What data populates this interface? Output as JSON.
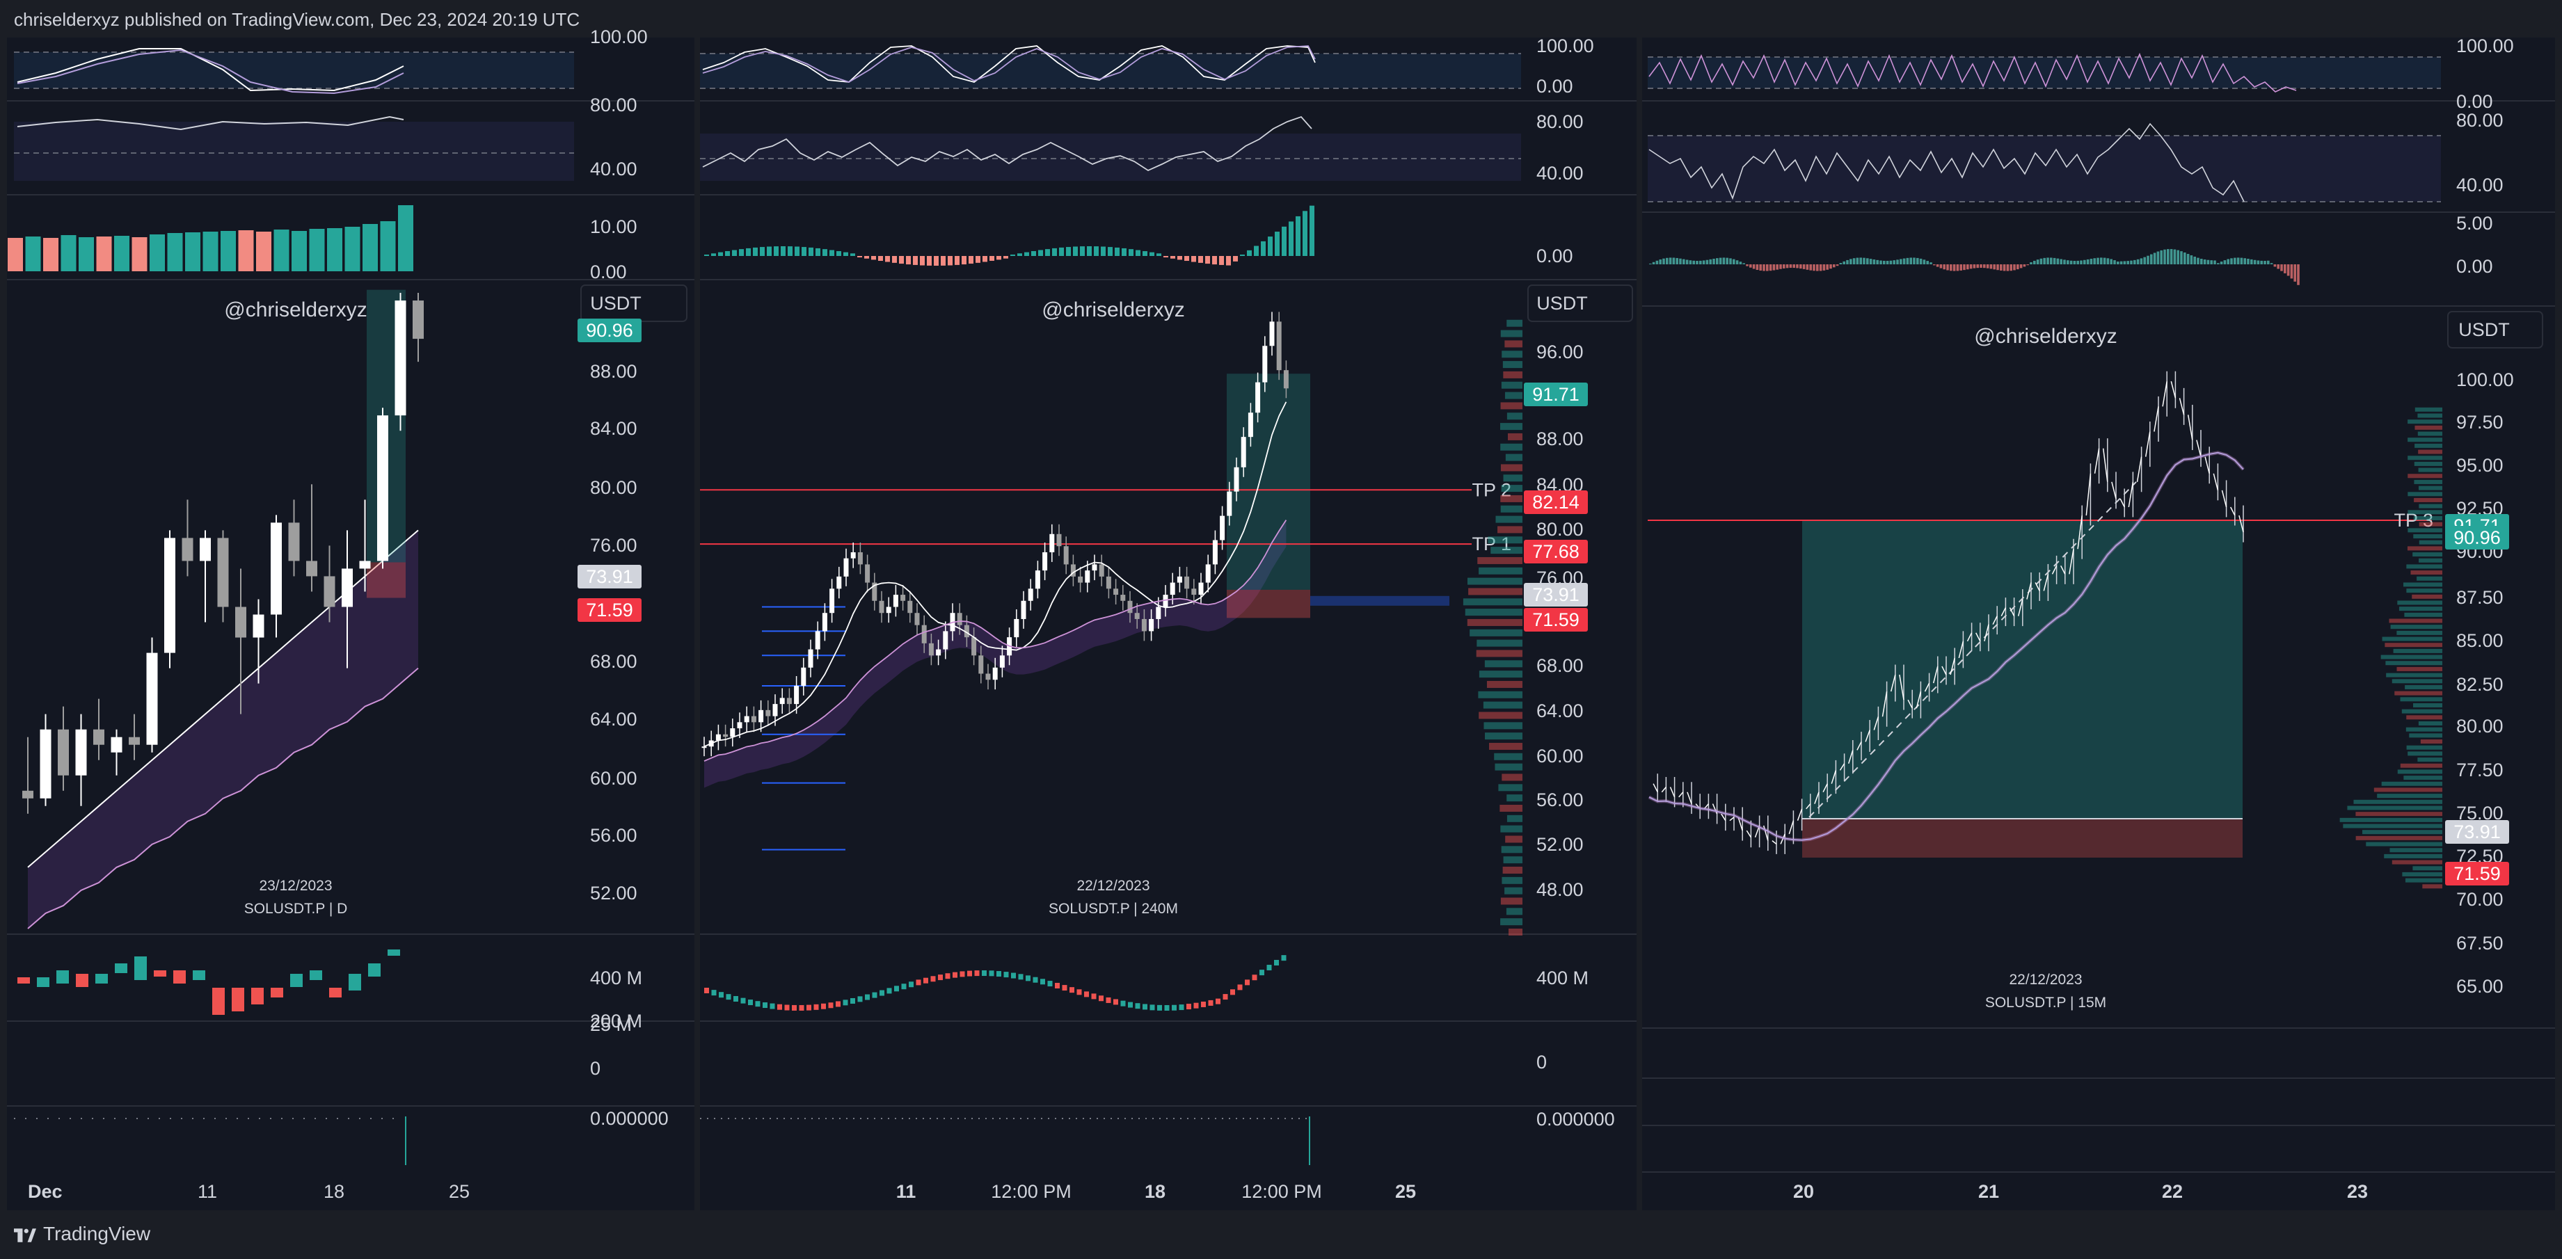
{
  "header": {
    "text": "chriselderxyz published on TradingView.com, Dec 23, 2024 20:19 UTC"
  },
  "footer": {
    "logo_text": "TradingView"
  },
  "colors": {
    "bg": "#131722",
    "up": "#26a69a",
    "down": "#ef5350",
    "candle_white": "#ffffff",
    "tp_line": "#f23645",
    "rsi": "#b39ddb"
  },
  "panels": [
    {
      "watermark": "@chriselderxyz",
      "currency": "USDT",
      "date_label": "23/12/2023",
      "symbol_label": "SOLUSDT.P | D",
      "price_ticks": [
        "88.00",
        "84.00",
        "80.00",
        "76.00",
        "68.00",
        "64.00",
        "60.00",
        "56.00",
        "52.00"
      ],
      "price_tags": [
        {
          "text": "90.96",
          "color": "#26a69a"
        },
        {
          "text": "73.91",
          "color": "#d1d4dc"
        },
        {
          "text": "71.59",
          "color": "#f23645"
        }
      ],
      "osc1_ticks": [
        "100.00"
      ],
      "osc2_ticks": [
        "80.00",
        "40.00"
      ],
      "macd_ticks": [
        "10.00",
        "0.00"
      ],
      "volume_ticks": [
        "400 M",
        "200 M"
      ],
      "vol2_ticks": [
        "25 M",
        "0"
      ],
      "misc_ticks": [
        "0.000000"
      ],
      "x_ticks": [
        {
          "text": "Dec",
          "bold": true
        },
        {
          "text": "11",
          "bold": false
        },
        {
          "text": "18",
          "bold": false
        },
        {
          "text": "25",
          "bold": false
        }
      ]
    },
    {
      "watermark": "@chriselderxyz",
      "currency": "USDT",
      "date_label": "22/12/2023",
      "symbol_label": "SOLUSDT.P | 240M",
      "price_ticks": [
        "96.00",
        "88.00",
        "84.00",
        "80.00",
        "76.00",
        "68.00",
        "64.00",
        "60.00",
        "56.00",
        "52.00",
        "48.00"
      ],
      "price_tags": [
        {
          "text": "91.71",
          "color": "#26a69a"
        },
        {
          "text": "82.14",
          "color": "#f23645"
        },
        {
          "text": "77.68",
          "color": "#f23645"
        },
        {
          "text": "73.91",
          "color": "#d1d4dc"
        },
        {
          "text": "71.59",
          "color": "#f23645"
        }
      ],
      "tp_labels": [
        "TP 2",
        "TP 1"
      ],
      "osc1_ticks": [
        "100.00",
        "0.00"
      ],
      "osc2_ticks": [
        "80.00",
        "40.00"
      ],
      "macd_ticks": [
        "0.00"
      ],
      "volume_ticks": [
        "400 M"
      ],
      "vol2_ticks": [
        "0"
      ],
      "misc_ticks": [
        "0.000000"
      ],
      "x_ticks": [
        {
          "text": "11",
          "bold": true
        },
        {
          "text": "12:00 PM",
          "bold": false
        },
        {
          "text": "18",
          "bold": true
        },
        {
          "text": "12:00 PM",
          "bold": false
        },
        {
          "text": "25",
          "bold": true
        }
      ]
    },
    {
      "watermark": "@chriselderxyz",
      "currency": "USDT",
      "date_label": "22/12/2023",
      "symbol_label": "SOLUSDT.P | 15M",
      "price_ticks": [
        "100.00",
        "97.50",
        "95.00",
        "92.50",
        "90.00",
        "87.50",
        "85.00",
        "82.50",
        "80.00",
        "77.50",
        "75.00",
        "72.50",
        "70.00",
        "67.50",
        "65.00"
      ],
      "price_tags": [
        {
          "text": "91.71",
          "color": "#26a69a"
        },
        {
          "text": "90.96",
          "color": "#26a69a"
        },
        {
          "text": "73.91",
          "color": "#d1d4dc"
        },
        {
          "text": "71.59",
          "color": "#f23645"
        }
      ],
      "tp_labels": [
        "TP 3"
      ],
      "osc1_ticks": [
        "100.00",
        "0.00"
      ],
      "osc2_ticks": [
        "80.00",
        "40.00"
      ],
      "macd_ticks": [
        "5.00",
        "0.00"
      ],
      "x_ticks": [
        {
          "text": "20",
          "bold": true
        },
        {
          "text": "21",
          "bold": true
        },
        {
          "text": "22",
          "bold": true
        },
        {
          "text": "23",
          "bold": true
        }
      ]
    }
  ],
  "chart_data": [
    {
      "type": "candlestick",
      "title": "SOLUSDT.P | D",
      "date": "23/12/2023",
      "ylim": [
        50,
        92
      ],
      "candles": [
        {
          "o": 59.0,
          "h": 62.5,
          "l": 57.5,
          "c": 58.5
        },
        {
          "o": 58.5,
          "h": 64.0,
          "l": 58.0,
          "c": 63.0
        },
        {
          "o": 63.0,
          "h": 64.5,
          "l": 59.0,
          "c": 60.0
        },
        {
          "o": 60.0,
          "h": 64.0,
          "l": 58.0,
          "c": 63.0
        },
        {
          "o": 63.0,
          "h": 65.0,
          "l": 61.0,
          "c": 62.0
        },
        {
          "o": 61.5,
          "h": 63.0,
          "l": 60.0,
          "c": 62.5
        },
        {
          "o": 62.5,
          "h": 64.0,
          "l": 61.0,
          "c": 62.0
        },
        {
          "o": 62.0,
          "h": 69.0,
          "l": 61.5,
          "c": 68.0
        },
        {
          "o": 68.0,
          "h": 76.0,
          "l": 67.0,
          "c": 75.5
        },
        {
          "o": 75.5,
          "h": 78.0,
          "l": 73.0,
          "c": 74.0
        },
        {
          "o": 74.0,
          "h": 76.0,
          "l": 70.0,
          "c": 75.5
        },
        {
          "o": 75.5,
          "h": 76.0,
          "l": 70.0,
          "c": 71.0
        },
        {
          "o": 71.0,
          "h": 73.5,
          "l": 64.0,
          "c": 69.0
        },
        {
          "o": 69.0,
          "h": 71.5,
          "l": 66.0,
          "c": 70.5
        },
        {
          "o": 70.5,
          "h": 77.0,
          "l": 69.0,
          "c": 76.5
        },
        {
          "o": 76.5,
          "h": 78.0,
          "l": 73.0,
          "c": 74.0
        },
        {
          "o": 74.0,
          "h": 79.0,
          "l": 72.0,
          "c": 73.0
        },
        {
          "o": 73.0,
          "h": 75.0,
          "l": 70.0,
          "c": 71.0
        },
        {
          "o": 71.0,
          "h": 76.0,
          "l": 67.0,
          "c": 73.5
        },
        {
          "o": 73.5,
          "h": 78.0,
          "l": 72.0,
          "c": 74.0
        },
        {
          "o": 74.0,
          "h": 84.0,
          "l": 73.5,
          "c": 83.5
        },
        {
          "o": 83.5,
          "h": 91.5,
          "l": 82.5,
          "c": 91.0
        },
        {
          "o": 91.0,
          "h": 91.5,
          "l": 87.0,
          "c": 88.5
        }
      ],
      "moving_averages": [
        {
          "name": "MA1",
          "values": [
            54,
            55,
            56,
            57,
            58,
            59,
            60,
            61,
            62,
            63,
            64,
            65,
            66,
            67,
            68,
            69,
            70,
            71,
            72,
            73,
            74,
            75,
            76
          ]
        },
        {
          "name": "MA2",
          "values": [
            50,
            51,
            51.5,
            52.5,
            53,
            54,
            54.5,
            55.5,
            56,
            57,
            57.5,
            58.5,
            59,
            60,
            60.5,
            61.5,
            62,
            63,
            63.5,
            64.5,
            65,
            66,
            67
          ]
        }
      ],
      "position": {
        "entry": 73.91,
        "stop": 71.59
      }
    },
    {
      "type": "candlestick",
      "title": "SOLUSDT.P | 240M",
      "date": "22/12/2023",
      "ylim": [
        46,
        99
      ],
      "levels": [
        {
          "name": "TP 2",
          "value": 82.14
        },
        {
          "name": "TP 1",
          "value": 77.68
        }
      ],
      "position": {
        "entry": 73.91,
        "stop": 71.59,
        "target": 91.71
      },
      "candles_close": [
        61.0,
        61.5,
        62.0,
        61.8,
        62.5,
        63.0,
        63.5,
        63.0,
        64.0,
        63.5,
        64.5,
        65.0,
        64.5,
        66.0,
        67.5,
        69.0,
        70.5,
        72.0,
        74.0,
        75.0,
        76.5,
        77.0,
        76.0,
        74.5,
        73.0,
        72.0,
        72.5,
        73.5,
        73.0,
        72.0,
        71.0,
        69.5,
        68.5,
        69.0,
        70.5,
        72.0,
        71.0,
        70.0,
        68.5,
        67.0,
        66.5,
        67.5,
        68.5,
        70.0,
        71.5,
        73.0,
        74.0,
        75.5,
        77.0,
        78.5,
        77.5,
        76.0,
        75.0,
        74.5,
        75.5,
        76.0,
        75.0,
        74.0,
        73.5,
        73.0,
        72.0,
        71.5,
        70.5,
        71.5,
        72.5,
        73.5,
        74.5,
        75.0,
        74.0,
        73.5,
        74.5,
        76.0,
        78.0,
        80.0,
        82.0,
        84.0,
        86.5,
        88.5,
        91.0,
        94.0,
        96.0,
        92.0,
        90.5
      ]
    },
    {
      "type": "candlestick",
      "title": "SOLUSDT.P | 15M",
      "date": "22/12/2023",
      "ylim": [
        63,
        102
      ],
      "levels": [
        {
          "name": "TP 3",
          "value": 91.71
        }
      ],
      "position": {
        "entry": 73.91,
        "stop": 71.59,
        "target": 91.71
      },
      "line_close": [
        76,
        75.5,
        75.8,
        75.2,
        75.5,
        74.8,
        74.5,
        74.8,
        74.2,
        73.8,
        74.0,
        73.2,
        72.8,
        73.5,
        72.6,
        72.4,
        73.0,
        73.8,
        74.5,
        74.8,
        75.5,
        76.0,
        76.8,
        77.2,
        78.0,
        78.5,
        79.2,
        80.0,
        81.5,
        82.5,
        81.0,
        80.5,
        81.5,
        82.0,
        83.0,
        82.5,
        83.5,
        84.5,
        85.0,
        84.5,
        85.5,
        86.0,
        86.5,
        86.0,
        87.0,
        88.0,
        87.5,
        88.5,
        89.0,
        88.5,
        90.0,
        92.0,
        94.5,
        96.0,
        94.0,
        93.0,
        92.5,
        94.0,
        95.5,
        97.0,
        98.5,
        100.0,
        99.0,
        98.0,
        96.5,
        95.5,
        94.5,
        93.5,
        92.5,
        92.0,
        91.0
      ]
    }
  ]
}
